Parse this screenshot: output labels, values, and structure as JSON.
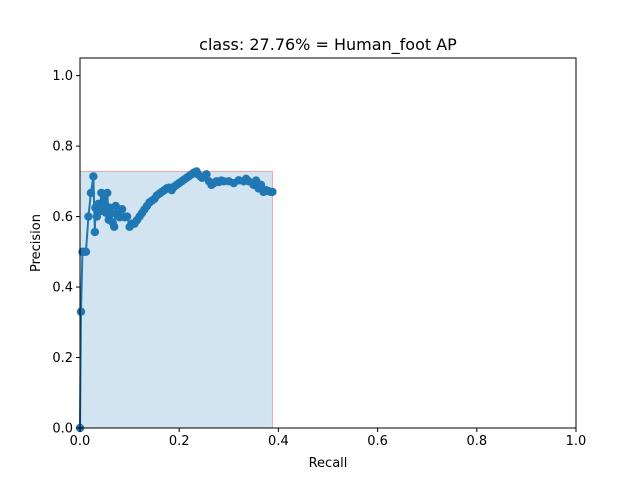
{
  "chart_data": {
    "type": "line",
    "title": "class: 27.76% = Human_foot AP",
    "xlabel": "Recall",
    "ylabel": "Precision",
    "xlim": [
      0,
      1.0
    ],
    "ylim": [
      0,
      1.05
    ],
    "grid": false,
    "x_ticks": [
      "0.0",
      "0.2",
      "0.4",
      "0.6",
      "0.8",
      "1.0"
    ],
    "y_ticks": [
      "0.0",
      "0.2",
      "0.4",
      "0.6",
      "0.8",
      "1.0"
    ],
    "x_tick_values": [
      0,
      0.2,
      0.4,
      0.6,
      0.8,
      1.0
    ],
    "y_tick_values": [
      0,
      0.2,
      0.4,
      0.6,
      0.8,
      1.0
    ],
    "colors": {
      "line": "#1f77b4",
      "fill": "#1f77b4",
      "fill_edge": "#f4a3a3"
    },
    "series": [
      {
        "x": [
          0.0,
          0.002,
          0.005,
          0.008,
          0.012,
          0.017,
          0.022,
          0.027,
          0.03,
          0.031,
          0.034,
          0.037,
          0.04,
          0.043,
          0.046,
          0.049,
          0.052,
          0.055,
          0.058,
          0.06,
          0.063,
          0.066,
          0.069,
          0.072,
          0.075,
          0.08,
          0.085,
          0.09,
          0.095,
          0.1,
          0.105,
          0.11,
          0.115,
          0.12,
          0.125,
          0.13,
          0.135,
          0.14,
          0.145,
          0.15,
          0.155,
          0.16,
          0.165,
          0.17,
          0.175,
          0.18,
          0.185,
          0.19,
          0.195,
          0.2,
          0.205,
          0.21,
          0.215,
          0.22,
          0.225,
          0.23,
          0.235,
          0.238,
          0.242,
          0.246,
          0.25,
          0.255,
          0.26,
          0.265,
          0.27,
          0.275,
          0.28,
          0.285,
          0.29,
          0.3,
          0.31,
          0.32,
          0.33,
          0.335,
          0.34,
          0.35,
          0.355,
          0.36,
          0.365,
          0.37,
          0.375,
          0.38,
          0.385,
          0.388
        ],
        "y": [
          0.0,
          0.33,
          0.5,
          0.5,
          0.5,
          0.6,
          0.667,
          0.714,
          0.556,
          0.625,
          0.6,
          0.636,
          0.615,
          0.667,
          0.625,
          0.647,
          0.611,
          0.667,
          0.591,
          0.625,
          0.609,
          0.583,
          0.571,
          0.63,
          0.607,
          0.598,
          0.621,
          0.598,
          0.6,
          0.571,
          0.58,
          0.58,
          0.59,
          0.6,
          0.61,
          0.62,
          0.63,
          0.64,
          0.645,
          0.65,
          0.66,
          0.665,
          0.67,
          0.675,
          0.68,
          0.682,
          0.675,
          0.685,
          0.69,
          0.695,
          0.7,
          0.705,
          0.71,
          0.715,
          0.72,
          0.725,
          0.728,
          0.72,
          0.715,
          0.71,
          0.712,
          0.72,
          0.7,
          0.69,
          0.695,
          0.7,
          0.698,
          0.702,
          0.7,
          0.7,
          0.695,
          0.703,
          0.7,
          0.707,
          0.7,
          0.69,
          0.702,
          0.68,
          0.69,
          0.67,
          0.675,
          0.672,
          0.67,
          0.67
        ]
      }
    ],
    "area": {
      "x": [
        0.0,
        0.388
      ],
      "precision_level": 0.728
    }
  }
}
